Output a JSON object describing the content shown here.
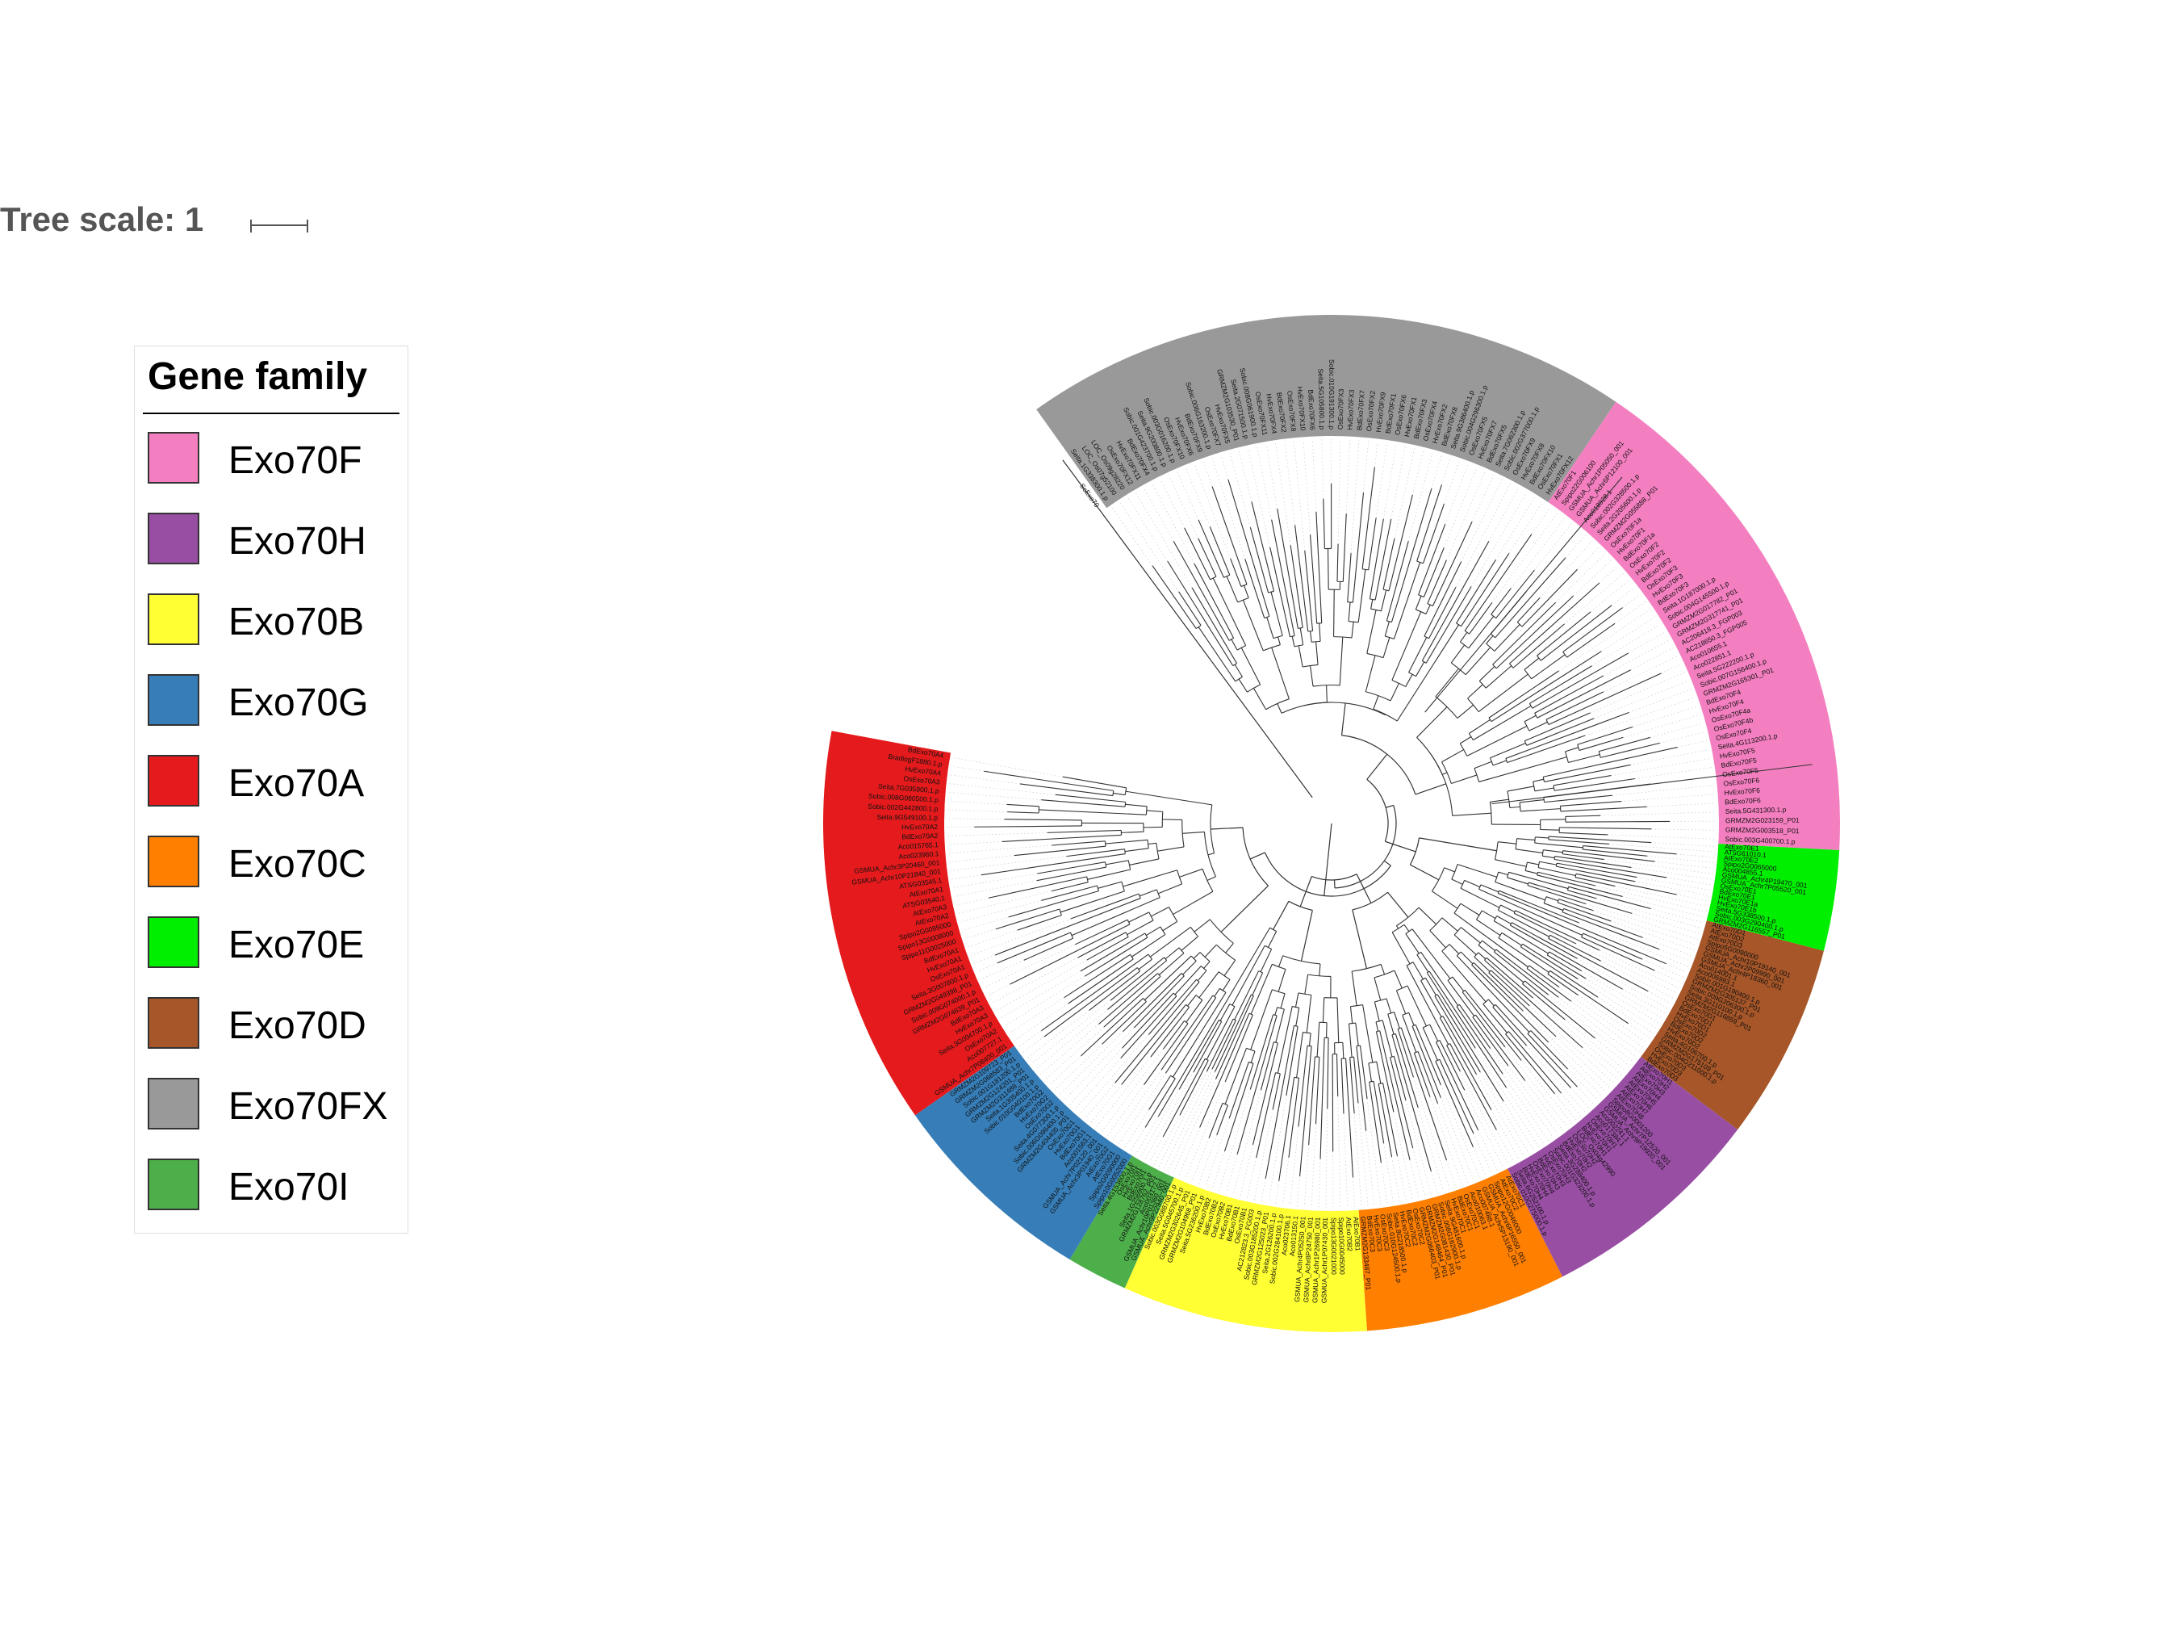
{
  "scale": {
    "label": "Tree scale: 1"
  },
  "legend": {
    "title": "Gene family",
    "items": [
      {
        "label": "Exo70F",
        "color": "#f47fc0"
      },
      {
        "label": "Exo70H",
        "color": "#984ea3"
      },
      {
        "label": "Exo70B",
        "color": "#ffff33"
      },
      {
        "label": "Exo70G",
        "color": "#377eb8"
      },
      {
        "label": "Exo70A",
        "color": "#e41a1c"
      },
      {
        "label": "Exo70C",
        "color": "#ff7f00"
      },
      {
        "label": "Exo70E",
        "color": "#00ee00"
      },
      {
        "label": "Exo70D",
        "color": "#a65628"
      },
      {
        "label": "Exo70FX",
        "color": "#999999"
      },
      {
        "label": "Exo70I",
        "color": "#4daf4a"
      }
    ]
  },
  "tree": {
    "layout": "circular",
    "outgroup": "ScExo70",
    "clades": [
      {
        "family": "Exo70FX",
        "color": "#999999",
        "leaves": [
          "Seita.1G338300.1.p",
          "LOC_Os07g52100",
          "LOC_Os09g28220",
          "OsExo70FX12",
          "HvExo70FX11",
          "BdExo70FX4",
          "Sobic.001G423700.1.p",
          "Seita.9G200800.1.p",
          "Sobic.003G016200.1.p",
          "OsExo70FX10",
          "HvExo70FX6",
          "BdExo70FX9",
          "Sobic.006G163200.1.p",
          "OsExo70FX7",
          "HvExo70FX5",
          "GRMZM2G103530_P01",
          "Seita.2G071500.1.p",
          "Sobic.008G061900.1.p",
          "OsExo70FX11",
          "HvExo70FX4",
          "BdExo70FX2",
          "OsExo70FX8",
          "HvExo70FX10",
          "BdExo70FX6",
          "Seita.5G105800.1.p",
          "Sobic.010G191300.1.p",
          "OsExo70FX3",
          "HvExo70FX3",
          "BdExo70FX7",
          "OsExo70FX2",
          "HvExo70FX9",
          "BdExo70FX1",
          "OsExo70FX6",
          "HvExo70FX1",
          "BdExo70FX3",
          "OsExo70FX4",
          "HvExo70FX2",
          "BdExo70FX8",
          "Seita.9G386400.1.p",
          "Sobic.004G296300.1.p",
          "OsExo70FX5",
          "HvExo70FX7",
          "BdExo70FX5",
          "Seita.7G062300.1.p",
          "Sobic.002G377000.1.p",
          "OsExo70FX9",
          "HvExo70FX8",
          "BdExo70FX10",
          "OsExo70FX1",
          "HvExo70FX12"
        ]
      },
      {
        "family": "Exo70F",
        "color": "#f47fc0",
        "leaves": [
          "AtExo70F1",
          "Spipo22G006100",
          "GSMUA_Achr1P05050_001",
          "GSMUA_Achr6P12100_001",
          "Aco018928.1",
          "Sobic.002G328500.1.p",
          "Seita.2G205600.1.p",
          "GRMZM2G055888_P01",
          "OsExo70F1a",
          "HvExo70F1",
          "BdExo70F1a",
          "OsExo70F2",
          "HvExo70F2",
          "BdExo70F2",
          "OsExo70F3",
          "HvExo70F3",
          "BdExo70F3",
          "Seita.1G187000.1.p",
          "Sobic.004G145500.1.p",
          "GRMZM2G017782_P01",
          "GRMZM2G317741_P01",
          "AC206418.3_FGP003",
          "AC218650.3_FGP005",
          "Aco010655.1",
          "Aco022851.1",
          "Seita.5G222200.1.p",
          "Sobic.007G156400.1.p",
          "GRMZM2G165301_P01",
          "BdExo70F4",
          "HvExo70F4",
          "OsExo70F4a",
          "OsExo70F4b",
          "OsExo70F4",
          "Seita.4G113200.1.p",
          "HvExo70F5",
          "BdExo70F5",
          "OsExo70F5",
          "OsExo70F6",
          "HvExo70F6",
          "BdExo70F6",
          "Seita.5G431300.1.p",
          "GRMZM2G023159_P01",
          "GRMZM2G003518_P01",
          "Sobic.003G400700.1.p"
        ]
      },
      {
        "family": "Exo70E",
        "color": "#00ee00",
        "leaves": [
          "AtExo70E1",
          "AT5G61010.1",
          "AtExo70E2",
          "Spipo2G0065000",
          "Aco004855.1",
          "GSMUA_Achr4P19470_001",
          "GSMUA_Achr7P05520_001",
          "OsExo70E1",
          "BdExo70E1",
          "HvExo70E1a",
          "HvExo70E1b",
          "Seita.5G338500.1.p",
          "Sobic.003G290400.1.p",
          "GRMZM2G116557_P01"
        ]
      },
      {
        "family": "Exo70D",
        "color": "#a65628",
        "leaves": [
          "AtExo70D1",
          "AtExo70D2",
          "AtExo70D3",
          "Spipo5G0090000",
          "GSMUA_Achr10P19140_001",
          "GSMUA_Achr2P09990_001",
          "GSMUA_Achr4P18360_001",
          "Aco014001.1",
          "Aco006993.1",
          "Sobic.001G190400.1.p",
          "GRMZM2G305137_P01",
          "Sobic.009G206300.1.p",
          "Seita.3G110100.1.p",
          "GRMZM2G116859_P01",
          "OsExo70D1",
          "BdExo70D1",
          "HvExo70D1",
          "OsExo70D2",
          "BdExo70D2",
          "HvExo70D2",
          "Seita.4G106700.1.p",
          "GRMZM2G175109_P01",
          "Sobic.004G211000.1.p",
          "OsExo70D3",
          "HvExo70D3",
          "BdExo70D3"
        ]
      },
      {
        "family": "Exo70H",
        "color": "#984ea3",
        "leaves": [
          "AtExo70H1",
          "AtExo70H2",
          "AtExo70H3",
          "AtExo70H4",
          "AtExo70H5",
          "AtExo70H6",
          "AtExo70H7",
          "AtExo70H8",
          "Spipo8G0001200",
          "GSMUA_Achr7P12520_001",
          "GSMUA_Achr9P19920_001",
          "Aco002241.1",
          "Aco017384.1",
          "OsExo70H1",
          "HvExo70H1",
          "BdExo70H1",
          "LOC_Os04g42990",
          "OsExo70H2",
          "HvExo70H2",
          "BdExo70H2",
          "Seita.3G288400.1.p",
          "Sobic.001G323200.1.p",
          "OsExo70H3",
          "HvExo70H3",
          "BdExo70H3",
          "OsExo70H4",
          "HvExo70H4",
          "BdExo70H4",
          "Seita.6G252100.1.p",
          "Sobic.010G275000.1.p"
        ]
      },
      {
        "family": "Exo70C",
        "color": "#ff7f00",
        "leaves": [
          "AtExo70C1",
          "AtExo70C2",
          "Spipo12G0046000",
          "GSMUA_Achr6P16550_001",
          "GSMUA_Achr5P13190_001",
          "Aco007488.1",
          "Aco010063.1",
          "OsExo70C1",
          "BdExo70C1",
          "HvExo70C1",
          "Seita.9G481600.1.p",
          "Sobic.008G162900.1.p",
          "GRMZM2G081430_P01",
          "GRMZM2G148464_P01",
          "GRMZM2G066403_P01",
          "OsExo70C2",
          "BdExo70C2",
          "HvExo70C2",
          "Seita.8G218500.1.p",
          "Sobic.010G124500.1.p",
          "OsExo70C3",
          "HvExo70C3",
          "BdExo70C3",
          "GRMZM2G133487_P01"
        ]
      },
      {
        "family": "Exo70B",
        "color": "#ffff33",
        "leaves": [
          "AtExo70B1",
          "AtExo70B2",
          "Spipo10G0045000",
          "Spipo13G0021000",
          "GSMUA_Achr1P07430_001",
          "GSMUA_Achr1P26980_001",
          "GSMUA_Achr8P24750_001",
          "GSMUA_Achr4P05250_001",
          "Aco013150.1",
          "Aco023706.1",
          "Sobic.002G284100.1.p",
          "Seita.2G126200.1.p",
          "GRMZM2G125023_P01",
          "Sobic.003G185200.1.p",
          "AC212823.3_FG003",
          "OsExo70B1",
          "BdExo70B1",
          "HvExo70B1",
          "OsExo70B2",
          "BdExo70B2",
          "HvExo70B2",
          "Seita.5G236200.1.p",
          "GRMZM2G104968_P01",
          "GRMZM2G302645_P01",
          "Seita.5G045700.1.p",
          "Sobic.003G088700.1.p"
        ]
      },
      {
        "family": "Exo70I",
        "color": "#4daf4a",
        "leaves": [
          "GSMUA_Achr9P22940_001",
          "GSMUA_Achr10P01360_001",
          "Aco003172.1",
          "GRMZM2G128762_P01",
          "Seita.1G256900.1.p",
          "BdExo70I1",
          "HvExo70I1",
          "OsExo70I1",
          "Seita.4G153600.1.p"
        ]
      },
      {
        "family": "Exo70G",
        "color": "#377eb8",
        "leaves": [
          "Spipo10G0052000",
          "Spipo2G0090000",
          "AtExo70G1",
          "AtExo70G2",
          "GSMUA_Achr3P01940_001",
          "GSMUA_Achr7P02120_001",
          "Aco001563.1",
          "BdExo70G1",
          "HvExo70G1",
          "OsExo70G1",
          "GRMZM2G404405_P01",
          "Sobic.006G096400.1.p",
          "Seita.4G077300.1.p",
          "OsExo70G2",
          "HvExo70G2",
          "BdExo70G2",
          "Sobic.010G040100.1.p",
          "Seita.1G305400.1.p",
          "GRMZM2G311488_P01",
          "GRMZM2G124201_P01",
          "Sobic.001G181200.1.p",
          "GRMZM2G068583_P01",
          "GRMZM2G109723_P01"
        ]
      },
      {
        "family": "Exo70A",
        "color": "#e41a1c",
        "leaves": [
          "GSMUA_Achr7P08400_001",
          "Aco007727.1",
          "OsExo70A2",
          "Seita.3G004700.1.p",
          "HvExo70A3",
          "BdExo70A3",
          "GRMZM2G074639_P01",
          "Sobic.009G074000.1.p",
          "GRMZM2G049398_P01",
          "Seita.3G007800.1.p",
          "OsExo70A1",
          "HvExo70A1",
          "BdExo70A1",
          "Spipo11G0025000",
          "Spipo13G0008000",
          "Spipo2G0095000",
          "AtExo70A2",
          "AtExo70A3",
          "ATSG03540.1",
          "AtExo70A1",
          "ATSG03545.1",
          "GSMUA_Achr10P21840_001",
          "GSMUA_Achr3P20460_001",
          "Aco023960.1",
          "Aco015765.1",
          "BdExo70A2",
          "HvExo70A2",
          "Seita.9G549100.1.p",
          "Sobic.002G442800.1.p",
          "Sobic.008G080500.1.p",
          "Seita.7G035900.1.p",
          "OsExo70A3",
          "HvExo70A4",
          "BradiogF1880.1.p",
          "BdExo70A4"
        ]
      }
    ]
  }
}
